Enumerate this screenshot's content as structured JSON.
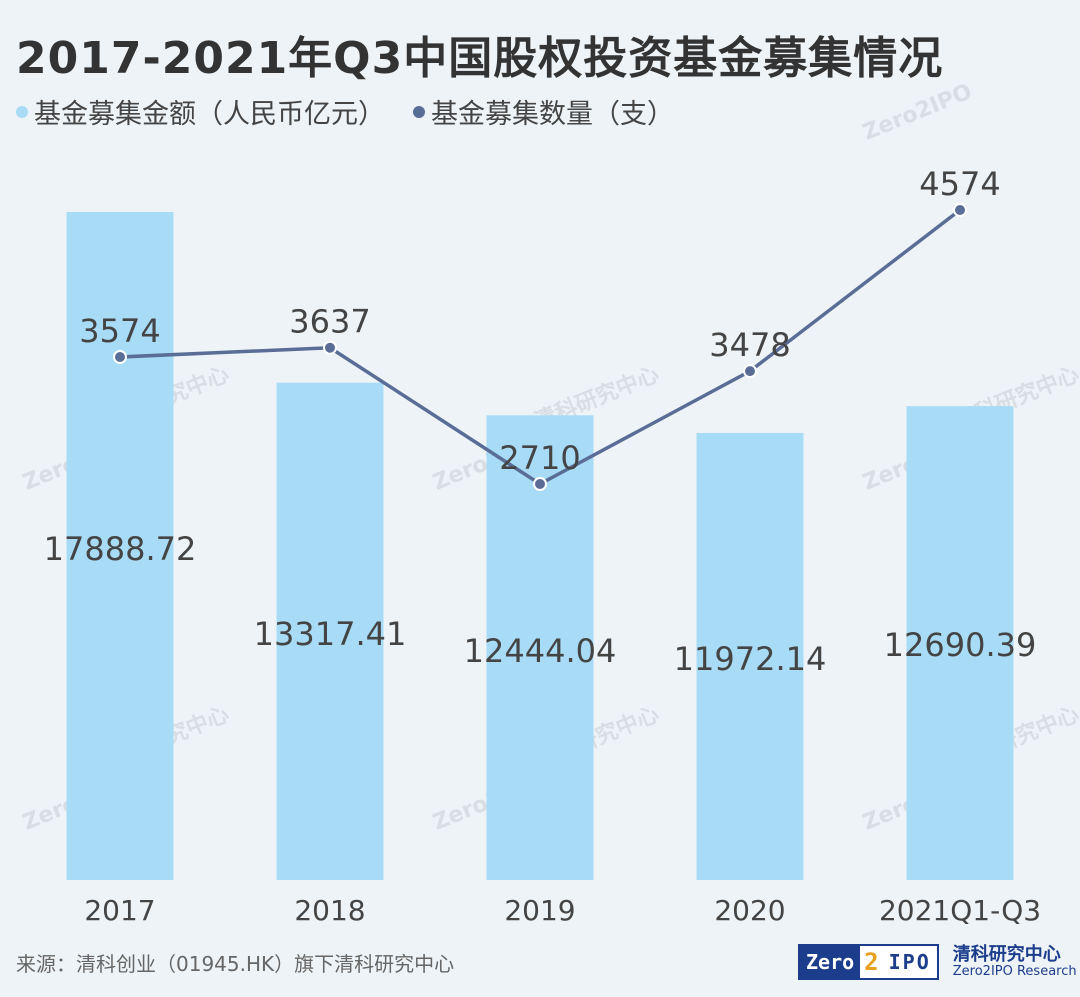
{
  "colors": {
    "bar": "#a8dcf6",
    "line": "#596d96",
    "point": "#596d96",
    "point_stroke": "#ffffff",
    "label": "#444444",
    "title": "#333333"
  },
  "chart_data": {
    "type": "bar",
    "title": "2017-2021年Q3中国股权投资基金募集情况",
    "categories": [
      "2017",
      "2018",
      "2019",
      "2020",
      "2021Q1-Q3"
    ],
    "series": [
      {
        "name": "基金募集金额（人民币亿元）",
        "type": "bar",
        "values": [
          17888.72,
          13317.41,
          12444.04,
          11972.14,
          12690.39
        ],
        "labels": [
          "17888.72",
          "13317.41",
          "12444.04",
          "11972.14",
          "12690.39"
        ]
      },
      {
        "name": "基金募集数量（支）",
        "type": "line",
        "values": [
          3574,
          3637,
          2710,
          3478,
          4574
        ],
        "labels": [
          "3574",
          "3637",
          "2710",
          "3478",
          "4574"
        ]
      }
    ],
    "legend": "top-left",
    "grid": false
  },
  "watermark": {
    "cn": "清科研究中心",
    "en": "Zero2IPO Research",
    "mark": "Zero2IPO"
  },
  "footer": {
    "source": "来源：清科创业（01945.HK）旗下清科研究中心",
    "logo_zero": "Zero",
    "logo_two": "2",
    "logo_ipo": "IPO",
    "logo_cn": "清科研究中心",
    "logo_en": "Zero2IPO Research"
  }
}
